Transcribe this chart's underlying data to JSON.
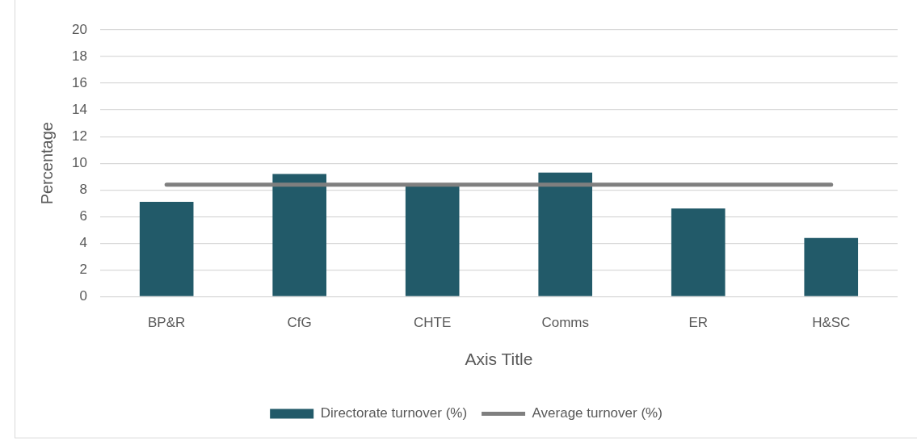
{
  "chart_data": {
    "type": "bar",
    "xlabel": "Axis Title",
    "ylabel": "Percentage",
    "categories": [
      "BP&R",
      "CfG",
      "CHTE",
      "Comms",
      "ER",
      "H&SC"
    ],
    "series": [
      {
        "name": "Directorate turnover (%)",
        "color": "#225a69",
        "values": [
          7.1,
          9.2,
          8.4,
          9.3,
          6.6,
          4.4
        ]
      },
      {
        "name": "Average turnover (%)",
        "type": "line",
        "color": "#7f7f7f",
        "values": [
          8.4,
          8.4,
          8.4,
          8.4,
          8.4,
          8.4
        ]
      }
    ],
    "ylim": [
      0,
      20
    ],
    "yticks": [
      0,
      2,
      4,
      6,
      8,
      10,
      12,
      14,
      16,
      18,
      20
    ],
    "grid": "y",
    "legend": "bottom",
    "marker": "none"
  }
}
